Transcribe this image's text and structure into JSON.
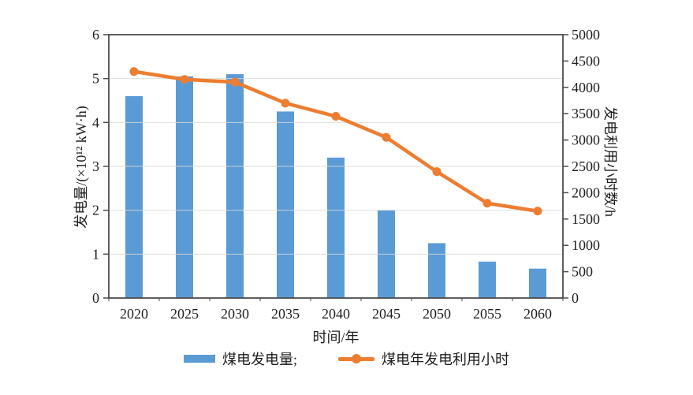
{
  "chart_data": {
    "type": "bar",
    "categories": [
      "2020",
      "2025",
      "2030",
      "2035",
      "2040",
      "2045",
      "2050",
      "2055",
      "2060"
    ],
    "series": [
      {
        "name": "煤电发电量",
        "type": "bar",
        "axis": "left",
        "color": "#5B9BD5",
        "values": [
          4.6,
          5.05,
          5.1,
          4.25,
          3.2,
          2.0,
          1.25,
          0.83,
          0.67
        ]
      },
      {
        "name": "煤电年发电利用小时",
        "type": "line",
        "axis": "right",
        "color": "#ED7D31",
        "values": [
          4300,
          4150,
          4100,
          3700,
          3450,
          3050,
          2400,
          1800,
          1650
        ]
      }
    ],
    "title": "",
    "xlabel": "时间/年",
    "ylabel_left": "发电量/(×10¹² kW·h)",
    "ylabel_right": "发电利用小时数/h",
    "ylim_left": [
      0,
      6
    ],
    "yticks_left": [
      0,
      1,
      2,
      3,
      4,
      5,
      6
    ],
    "ylim_right": [
      0,
      5000
    ],
    "yticks_right": [
      0,
      500,
      1000,
      1500,
      2000,
      2500,
      3000,
      3500,
      4000,
      4500,
      5000
    ],
    "grid": "horizontal",
    "legend_position": "bottom"
  },
  "legend": {
    "items": [
      {
        "label": "煤电发电量;",
        "color": "#5B9BD5",
        "marker": "bar"
      },
      {
        "label": "煤电年发电利用小时",
        "color": "#ED7D31",
        "marker": "line-dot"
      }
    ]
  },
  "colors": {
    "bar": "#5B9BD5",
    "line": "#ED7D31",
    "grid": "#D9D9D9",
    "frame": "#4d4d4d",
    "text": "#1f1f1f",
    "background": "#ffffff"
  }
}
